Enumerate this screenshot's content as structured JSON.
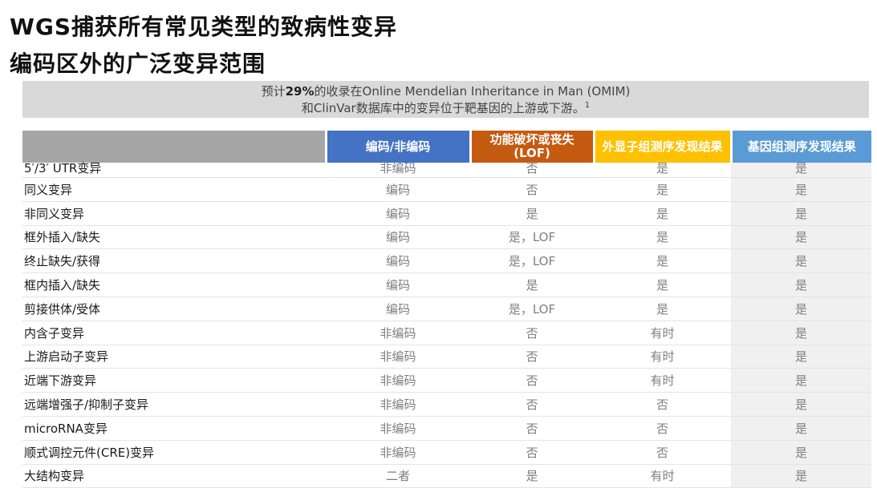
{
  "title_line1": "WGS捕获所有常见类型的致病性变异",
  "title_line2": "编码区外的广泛变异范围",
  "note": {
    "pre": "预计",
    "percent": "29%",
    "post": "的收录在Online Mendelian Inheritance in Man (OMIM)",
    "line2": "和ClinVar数据库中的变异位于靶基因的上游或下游。",
    "superscript": "1"
  },
  "table": {
    "headers": [
      "",
      "编码/非编码",
      "功能破坏或丧失(LOF)",
      "外显子组测序发现结果",
      "基因组测序发现结果"
    ],
    "rows": [
      {
        "name": "5′/3′ UTR变异",
        "coding": "非编码",
        "lof": "否",
        "wes": "是",
        "wgs": "是"
      },
      {
        "name": "同义变异",
        "coding": "编码",
        "lof": "否",
        "wes": "是",
        "wgs": "是"
      },
      {
        "name": "非同义变异",
        "coding": "编码",
        "lof": "是",
        "wes": "是",
        "wgs": "是"
      },
      {
        "name": "框外插入/缺失",
        "coding": "编码",
        "lof": "是，LOF",
        "wes": "是",
        "wgs": "是"
      },
      {
        "name": "终止缺失/获得",
        "coding": "编码",
        "lof": "是，LOF",
        "wes": "是",
        "wgs": "是"
      },
      {
        "name": "框内插入/缺失",
        "coding": "编码",
        "lof": "是",
        "wes": "是",
        "wgs": "是"
      },
      {
        "name": "剪接供体/受体",
        "coding": "编码",
        "lof": "是，LOF",
        "wes": "是",
        "wgs": "是"
      },
      {
        "name": "内含子变异",
        "coding": "非编码",
        "lof": "否",
        "wes": "有时",
        "wgs": "是"
      },
      {
        "name": "上游启动子变异",
        "coding": "非编码",
        "lof": "否",
        "wes": "有时",
        "wgs": "是"
      },
      {
        "name": "近端下游变异",
        "coding": "非编码",
        "lof": "否",
        "wes": "有时",
        "wgs": "是"
      },
      {
        "name": "远端增强子/抑制子变异",
        "coding": "非编码",
        "lof": "否",
        "wes": "否",
        "wgs": "是"
      },
      {
        "name": "microRNA变异",
        "coding": "非编码",
        "lof": "否",
        "wes": "否",
        "wgs": "是"
      },
      {
        "name": "顺式调控元件(CRE)变异",
        "coding": "非编码",
        "lof": "否",
        "wes": "否",
        "wgs": "是"
      },
      {
        "name": "大结构变异",
        "coding": "二者",
        "lof": "是",
        "wes": "有时",
        "wgs": "是"
      }
    ]
  },
  "colors": {
    "header_gray": "#a6a6a6",
    "header_blue": "#4472c4",
    "header_orange": "#c55a11",
    "header_yellow": "#ffc000",
    "header_lightblue": "#5b9bd5",
    "note_bg": "#d9d9d9"
  }
}
